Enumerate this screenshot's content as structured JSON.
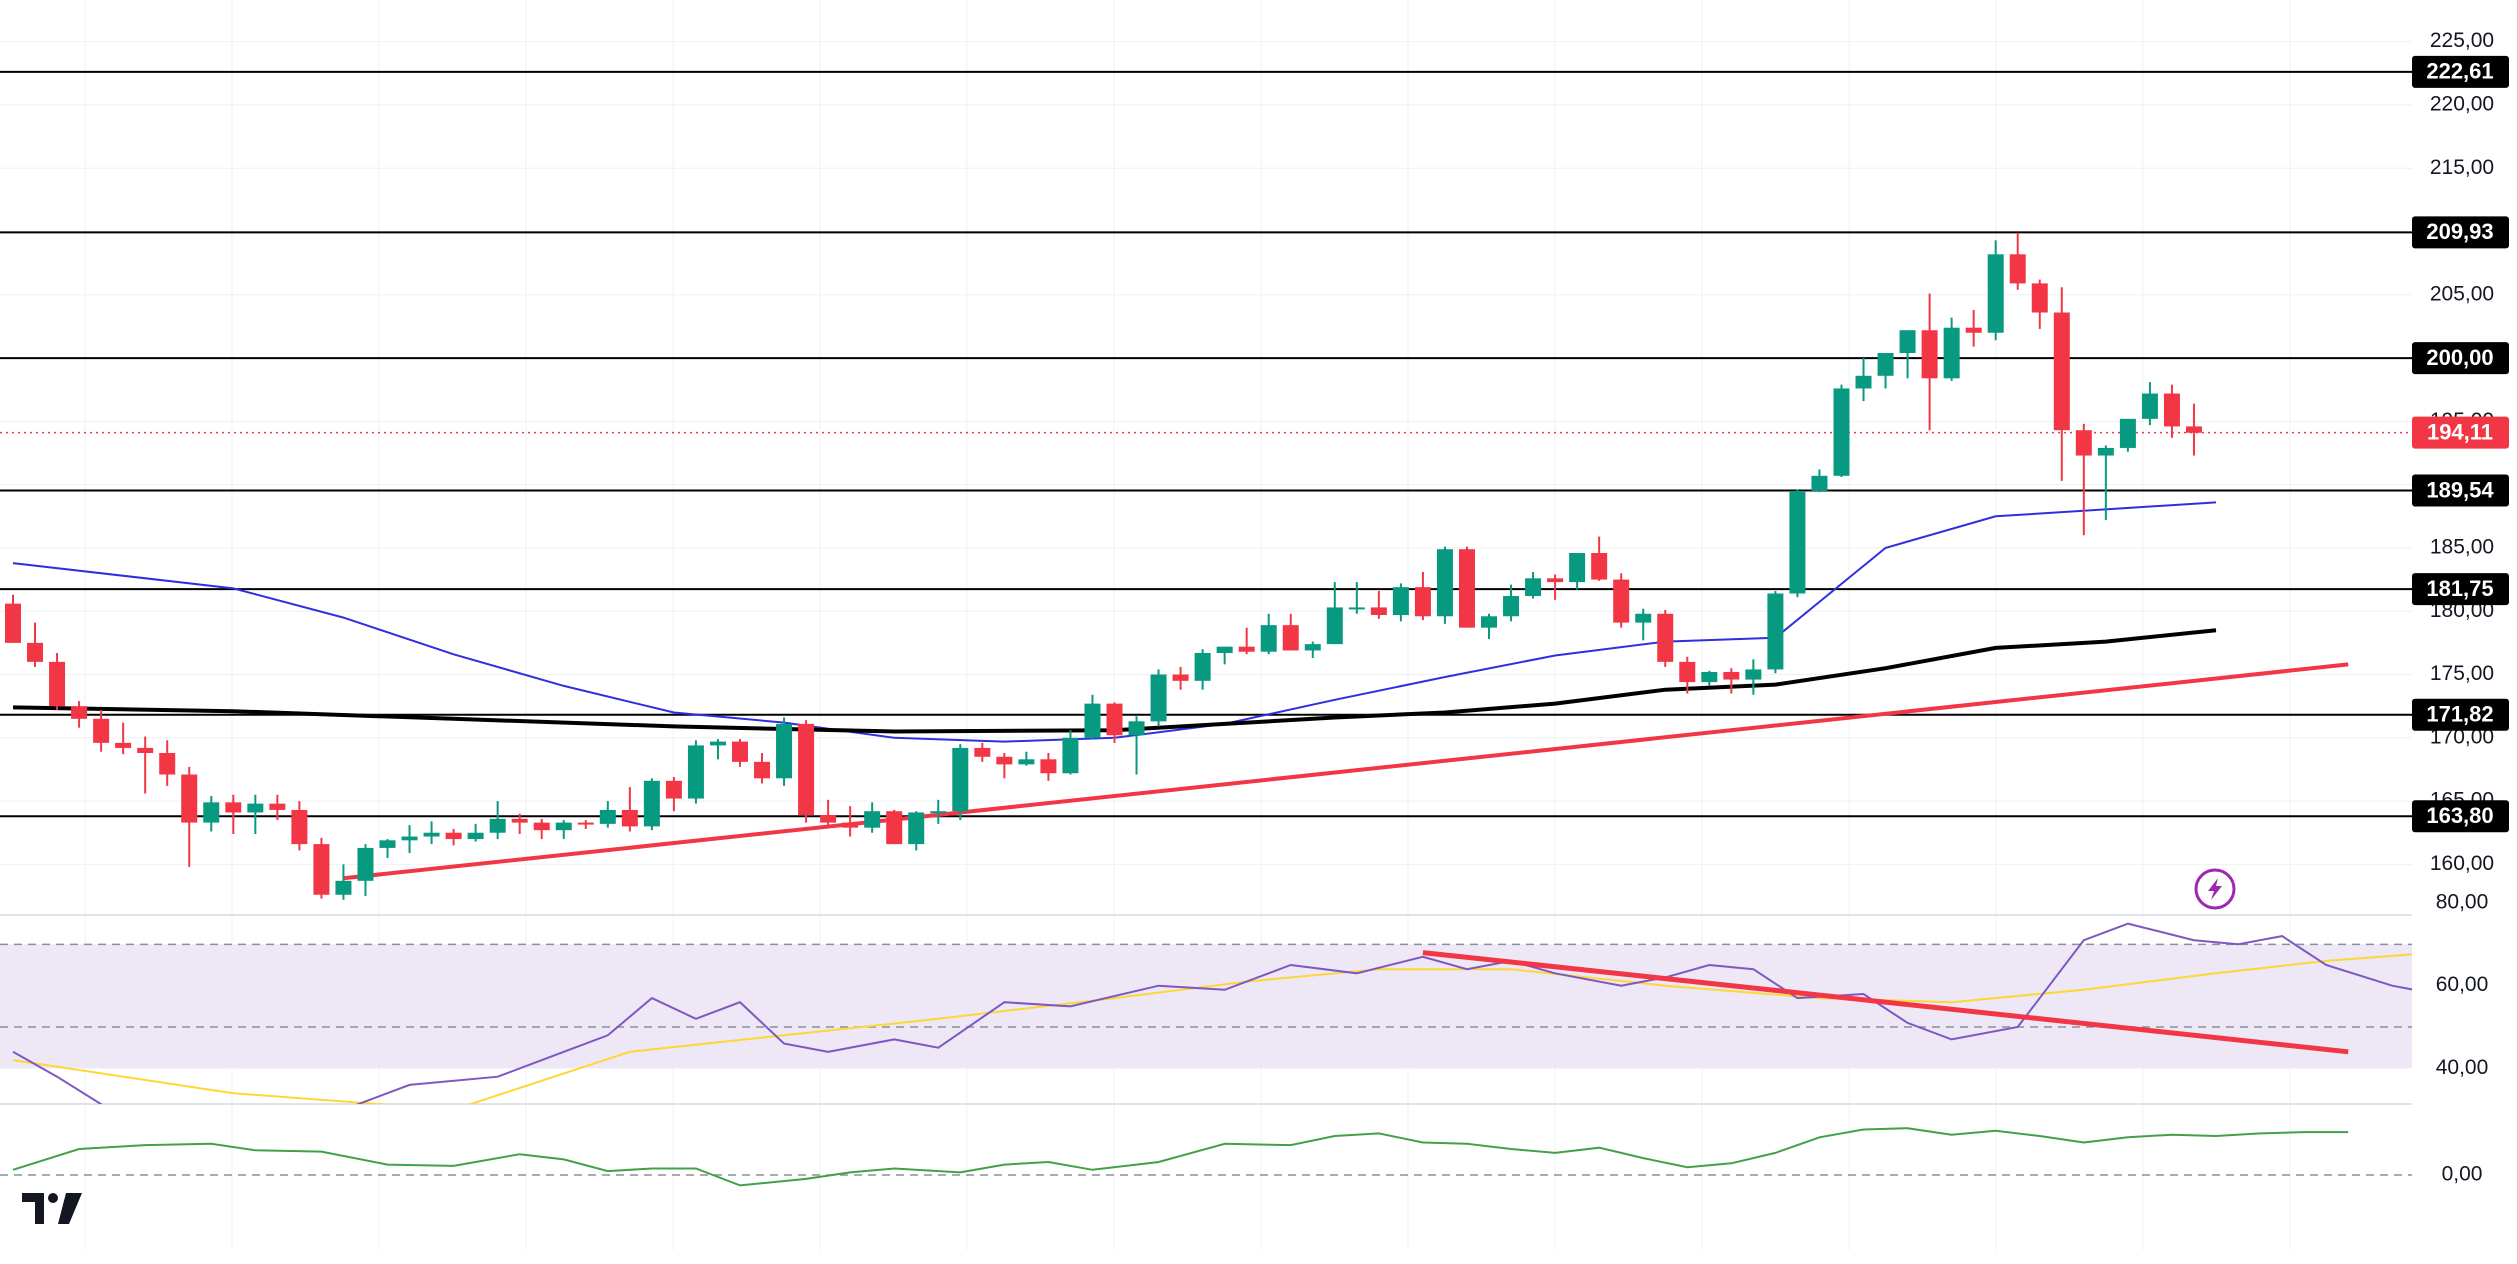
{
  "colors": {
    "up": "#089981",
    "down": "#f23645",
    "grid": "#eef0f3",
    "sma_short": "#2f2fe0",
    "sma_long": "#000000",
    "trendline": "#f23645",
    "level": "#000000",
    "rsi": "#7e57c2",
    "rsi_ma": "#fdd835",
    "rsi_band": "#ede7f6",
    "osc": "#43a047",
    "badge_bg": "#000000",
    "price_badge_bg": "#f23645",
    "flash_icon": "#9c27b0"
  },
  "chart_data": [
    {
      "type": "candlestick",
      "ylim": [
        156.0,
        227.5
      ],
      "y_ticks": [
        "160,00",
        "165,00",
        "170,00",
        "175,00",
        "180,00",
        "185,00",
        "195,00",
        "205,00",
        "215,00",
        "220,00",
        "225,00"
      ],
      "tick_values": [
        160,
        165,
        170,
        175,
        180,
        185,
        195,
        205,
        215,
        220,
        225
      ],
      "last_price": {
        "value": 194.11,
        "label": "194,11"
      },
      "levels": [
        {
          "value": 222.61,
          "label": "222,61"
        },
        {
          "value": 209.93,
          "label": "209,93"
        },
        {
          "value": 200.0,
          "label": "200,00"
        },
        {
          "value": 189.54,
          "label": "189,54"
        },
        {
          "value": 181.75,
          "label": "181,75"
        },
        {
          "value": 171.82,
          "label": "171,82"
        },
        {
          "value": 163.8,
          "label": "163,80"
        }
      ],
      "candles": [
        [
          180.6,
          181.3,
          177.5,
          177.5
        ],
        [
          177.5,
          179.1,
          175.6,
          176.0
        ],
        [
          176.0,
          176.7,
          172.2,
          172.5
        ],
        [
          172.5,
          172.9,
          170.8,
          171.5
        ],
        [
          171.5,
          172.2,
          168.9,
          169.6
        ],
        [
          169.6,
          171.2,
          168.7,
          169.2
        ],
        [
          169.2,
          170.1,
          165.6,
          168.8
        ],
        [
          168.8,
          169.8,
          166.2,
          167.1
        ],
        [
          167.1,
          167.7,
          159.8,
          163.3
        ],
        [
          163.3,
          165.4,
          162.6,
          164.9
        ],
        [
          164.9,
          165.5,
          162.4,
          164.1
        ],
        [
          164.1,
          165.5,
          162.4,
          164.8
        ],
        [
          164.8,
          165.5,
          163.5,
          164.3
        ],
        [
          164.3,
          165.0,
          161.1,
          161.6
        ],
        [
          161.6,
          162.1,
          157.3,
          157.6
        ],
        [
          157.6,
          160.0,
          157.2,
          158.7
        ],
        [
          158.7,
          161.6,
          157.5,
          161.3
        ],
        [
          161.3,
          162.0,
          160.5,
          161.9
        ],
        [
          161.9,
          163.1,
          160.9,
          162.2
        ],
        [
          162.2,
          163.4,
          161.6,
          162.5
        ],
        [
          162.5,
          162.8,
          161.5,
          162.0
        ],
        [
          162.0,
          163.2,
          161.8,
          162.5
        ],
        [
          162.5,
          165.0,
          162.0,
          163.6
        ],
        [
          163.6,
          164.0,
          162.4,
          163.3
        ],
        [
          163.3,
          163.6,
          162.0,
          162.7
        ],
        [
          162.7,
          163.5,
          162.0,
          163.3
        ],
        [
          163.3,
          163.5,
          162.8,
          163.2
        ],
        [
          163.2,
          165.0,
          162.9,
          164.3
        ],
        [
          164.3,
          166.1,
          162.6,
          163.0
        ],
        [
          163.0,
          166.8,
          162.7,
          166.6
        ],
        [
          166.6,
          166.9,
          164.2,
          165.2
        ],
        [
          165.2,
          169.8,
          164.8,
          169.4
        ],
        [
          169.4,
          169.9,
          168.3,
          169.7
        ],
        [
          169.7,
          169.9,
          167.7,
          168.1
        ],
        [
          168.1,
          168.8,
          166.4,
          166.8
        ],
        [
          166.8,
          171.6,
          166.2,
          171.1
        ],
        [
          171.1,
          171.4,
          163.3,
          163.9
        ],
        [
          163.9,
          165.1,
          163.0,
          163.3
        ],
        [
          163.3,
          164.6,
          162.2,
          162.9
        ],
        [
          162.9,
          164.9,
          162.5,
          164.2
        ],
        [
          164.2,
          164.3,
          161.6,
          161.6
        ],
        [
          161.6,
          164.2,
          161.1,
          164.1
        ],
        [
          164.1,
          165.1,
          163.2,
          164.2
        ],
        [
          164.2,
          169.5,
          163.5,
          169.2
        ],
        [
          169.2,
          169.6,
          168.1,
          168.5
        ],
        [
          168.5,
          168.8,
          166.8,
          167.9
        ],
        [
          167.9,
          168.9,
          167.8,
          168.3
        ],
        [
          168.3,
          168.8,
          166.6,
          167.2
        ],
        [
          167.2,
          170.6,
          167.1,
          170.0
        ],
        [
          170.0,
          173.4,
          169.9,
          172.7
        ],
        [
          172.7,
          172.8,
          169.6,
          170.2
        ],
        [
          170.2,
          171.7,
          167.1,
          171.3
        ],
        [
          171.3,
          175.4,
          170.9,
          175.0
        ],
        [
          175.0,
          175.6,
          173.8,
          174.5
        ],
        [
          174.5,
          177.0,
          173.8,
          176.7
        ],
        [
          176.7,
          177.2,
          175.8,
          177.2
        ],
        [
          177.2,
          178.7,
          176.6,
          176.8
        ],
        [
          176.8,
          179.8,
          176.6,
          178.9
        ],
        [
          178.9,
          179.8,
          176.9,
          176.9
        ],
        [
          176.9,
          177.6,
          176.3,
          177.4
        ],
        [
          177.4,
          182.3,
          177.4,
          180.3
        ],
        [
          180.3,
          182.3,
          179.8,
          180.3
        ],
        [
          180.3,
          181.6,
          179.4,
          179.7
        ],
        [
          179.7,
          182.2,
          179.2,
          181.9
        ],
        [
          181.9,
          183.1,
          179.3,
          179.6
        ],
        [
          179.6,
          185.1,
          179.0,
          184.9
        ],
        [
          184.9,
          185.1,
          178.7,
          178.7
        ],
        [
          178.7,
          179.8,
          177.8,
          179.6
        ],
        [
          179.6,
          182.1,
          179.2,
          181.2
        ],
        [
          181.2,
          183.1,
          181.0,
          182.6
        ],
        [
          182.6,
          182.9,
          180.9,
          182.3
        ],
        [
          182.3,
          184.6,
          181.7,
          184.6
        ],
        [
          184.6,
          185.9,
          182.4,
          182.5
        ],
        [
          182.5,
          183.0,
          178.7,
          179.1
        ],
        [
          179.1,
          180.2,
          177.7,
          179.8
        ],
        [
          179.8,
          180.1,
          175.6,
          176.0
        ],
        [
          176.0,
          176.4,
          173.5,
          174.4
        ],
        [
          174.4,
          175.3,
          174.1,
          175.2
        ],
        [
          175.2,
          175.5,
          173.5,
          174.6
        ],
        [
          174.6,
          176.2,
          173.4,
          175.4
        ],
        [
          175.4,
          181.6,
          175.1,
          181.4
        ],
        [
          181.4,
          189.6,
          181.1,
          189.5
        ],
        [
          189.5,
          191.2,
          189.4,
          190.7
        ],
        [
          190.7,
          197.9,
          190.6,
          197.6
        ],
        [
          197.6,
          200.0,
          196.6,
          198.6
        ],
        [
          198.6,
          200.4,
          197.6,
          200.4
        ],
        [
          200.4,
          201.9,
          198.4,
          202.2
        ],
        [
          202.2,
          205.1,
          194.3,
          198.4
        ],
        [
          198.4,
          203.2,
          198.2,
          202.4
        ],
        [
          202.4,
          203.8,
          200.9,
          202.0
        ],
        [
          202.0,
          209.3,
          201.4,
          208.2
        ],
        [
          208.2,
          209.9,
          205.4,
          205.9
        ],
        [
          205.9,
          206.2,
          202.3,
          203.6
        ],
        [
          203.6,
          205.6,
          190.3,
          194.3
        ],
        [
          194.3,
          194.8,
          186.0,
          192.3
        ],
        [
          192.3,
          193.1,
          187.2,
          192.9
        ],
        [
          192.9,
          195.2,
          192.6,
          195.2
        ],
        [
          195.2,
          198.1,
          194.7,
          197.2
        ],
        [
          197.2,
          197.9,
          193.7,
          194.6
        ],
        [
          194.6,
          196.4,
          192.3,
          194.1
        ]
      ],
      "sma_short": [
        [
          0,
          183.8
        ],
        [
          10,
          181.8
        ],
        [
          15,
          179.5
        ],
        [
          20,
          176.6
        ],
        [
          25,
          174.1
        ],
        [
          30,
          172.0
        ],
        [
          35,
          171.2
        ],
        [
          40,
          170.0
        ],
        [
          45,
          169.7
        ],
        [
          50,
          170.0
        ],
        [
          55,
          171.1
        ],
        [
          60,
          173.0
        ],
        [
          65,
          174.8
        ],
        [
          70,
          176.5
        ],
        [
          75,
          177.6
        ],
        [
          80,
          177.9
        ],
        [
          85,
          185.0
        ],
        [
          90,
          187.5
        ],
        [
          100,
          188.6
        ]
      ],
      "sma_long": [
        [
          0,
          172.4
        ],
        [
          10,
          172.1
        ],
        [
          20,
          171.5
        ],
        [
          30,
          170.9
        ],
        [
          40,
          170.5
        ],
        [
          50,
          170.6
        ],
        [
          55,
          171.1
        ],
        [
          60,
          171.6
        ],
        [
          65,
          172.0
        ],
        [
          70,
          172.7
        ],
        [
          75,
          173.8
        ],
        [
          80,
          174.2
        ],
        [
          85,
          175.5
        ],
        [
          90,
          177.1
        ],
        [
          95,
          177.6
        ],
        [
          100,
          178.5
        ]
      ],
      "trendline": [
        [
          15,
          158.9
        ],
        [
          106,
          175.8
        ]
      ]
    },
    {
      "type": "line",
      "name": "RSI",
      "ylim": [
        28.0,
        80.0
      ],
      "y_ticks": [
        "40,00",
        "60,00",
        "80,00"
      ],
      "tick_values": [
        40,
        60,
        80
      ],
      "band": [
        40,
        70
      ],
      "dashed": [
        50,
        70
      ],
      "rsi": [
        [
          0,
          44
        ],
        [
          2,
          38
        ],
        [
          5,
          28
        ],
        [
          15,
          30
        ],
        [
          18,
          36
        ],
        [
          22,
          38
        ],
        [
          25,
          44
        ],
        [
          27,
          48
        ],
        [
          29,
          57
        ],
        [
          31,
          52
        ],
        [
          33,
          56
        ],
        [
          35,
          46
        ],
        [
          37,
          44
        ],
        [
          40,
          47
        ],
        [
          42,
          45
        ],
        [
          45,
          56
        ],
        [
          48,
          55
        ],
        [
          52,
          60
        ],
        [
          55,
          59
        ],
        [
          58,
          65
        ],
        [
          61,
          63
        ],
        [
          64,
          67
        ],
        [
          66,
          64
        ],
        [
          68,
          66
        ],
        [
          70,
          63
        ],
        [
          73,
          60
        ],
        [
          75,
          62
        ],
        [
          77,
          65
        ],
        [
          79,
          64
        ],
        [
          81,
          57
        ],
        [
          84,
          58
        ],
        [
          86,
          51
        ],
        [
          88,
          47
        ],
        [
          91,
          50
        ],
        [
          94,
          71
        ],
        [
          96,
          75
        ],
        [
          99,
          71
        ],
        [
          101,
          70
        ],
        [
          103,
          72
        ],
        [
          105,
          65
        ],
        [
          108,
          60
        ],
        [
          110,
          58
        ],
        [
          112,
          55
        ],
        [
          115,
          54
        ],
        [
          117,
          52
        ],
        [
          119,
          53
        ],
        [
          121,
          54
        ]
      ],
      "rsi_ma": [
        [
          0,
          42
        ],
        [
          10,
          34
        ],
        [
          20,
          30
        ],
        [
          28,
          44
        ],
        [
          35,
          48
        ],
        [
          42,
          52
        ],
        [
          50,
          57
        ],
        [
          56,
          61
        ],
        [
          62,
          64
        ],
        [
          68,
          64
        ],
        [
          75,
          60
        ],
        [
          82,
          57
        ],
        [
          88,
          56
        ],
        [
          94,
          59
        ],
        [
          100,
          63
        ],
        [
          105,
          66
        ],
        [
          110,
          68
        ],
        [
          115,
          67
        ],
        [
          121,
          64
        ]
      ],
      "rsi_trendline": [
        [
          64,
          68
        ],
        [
          106,
          44
        ]
      ]
    },
    {
      "type": "line",
      "name": "Oscillator",
      "ylim": [
        -5.0,
        9.0
      ],
      "y_ticks": [
        "0,00"
      ],
      "tick_values": [
        0
      ],
      "zero_dashed": true,
      "osc": [
        [
          0,
          0.4
        ],
        [
          3,
          2.0
        ],
        [
          6,
          2.3
        ],
        [
          9,
          2.4
        ],
        [
          11,
          1.9
        ],
        [
          14,
          1.8
        ],
        [
          17,
          0.8
        ],
        [
          20,
          0.7
        ],
        [
          23,
          1.6
        ],
        [
          25,
          1.2
        ],
        [
          27,
          0.3
        ],
        [
          29,
          0.5
        ],
        [
          31,
          0.5
        ],
        [
          33,
          -0.8
        ],
        [
          36,
          -0.3
        ],
        [
          38,
          0.2
        ],
        [
          40,
          0.5
        ],
        [
          43,
          0.2
        ],
        [
          45,
          0.8
        ],
        [
          47,
          1.0
        ],
        [
          49,
          0.4
        ],
        [
          52,
          1.0
        ],
        [
          55,
          2.4
        ],
        [
          58,
          2.3
        ],
        [
          60,
          3.0
        ],
        [
          62,
          3.2
        ],
        [
          64,
          2.5
        ],
        [
          66,
          2.4
        ],
        [
          68,
          2.0
        ],
        [
          70,
          1.7
        ],
        [
          72,
          2.1
        ],
        [
          74,
          1.3
        ],
        [
          76,
          0.6
        ],
        [
          78,
          0.9
        ],
        [
          80,
          1.7
        ],
        [
          82,
          2.9
        ],
        [
          84,
          3.5
        ],
        [
          86,
          3.6
        ],
        [
          88,
          3.1
        ],
        [
          90,
          3.4
        ],
        [
          92,
          3.0
        ],
        [
          94,
          2.5
        ],
        [
          96,
          2.9
        ],
        [
          98,
          3.1
        ],
        [
          100,
          3.0
        ],
        [
          102,
          3.2
        ],
        [
          104,
          3.3
        ],
        [
          106,
          3.3
        ]
      ]
    }
  ],
  "logo": {
    "text": "TV"
  },
  "flash_icon": "flash-icon"
}
